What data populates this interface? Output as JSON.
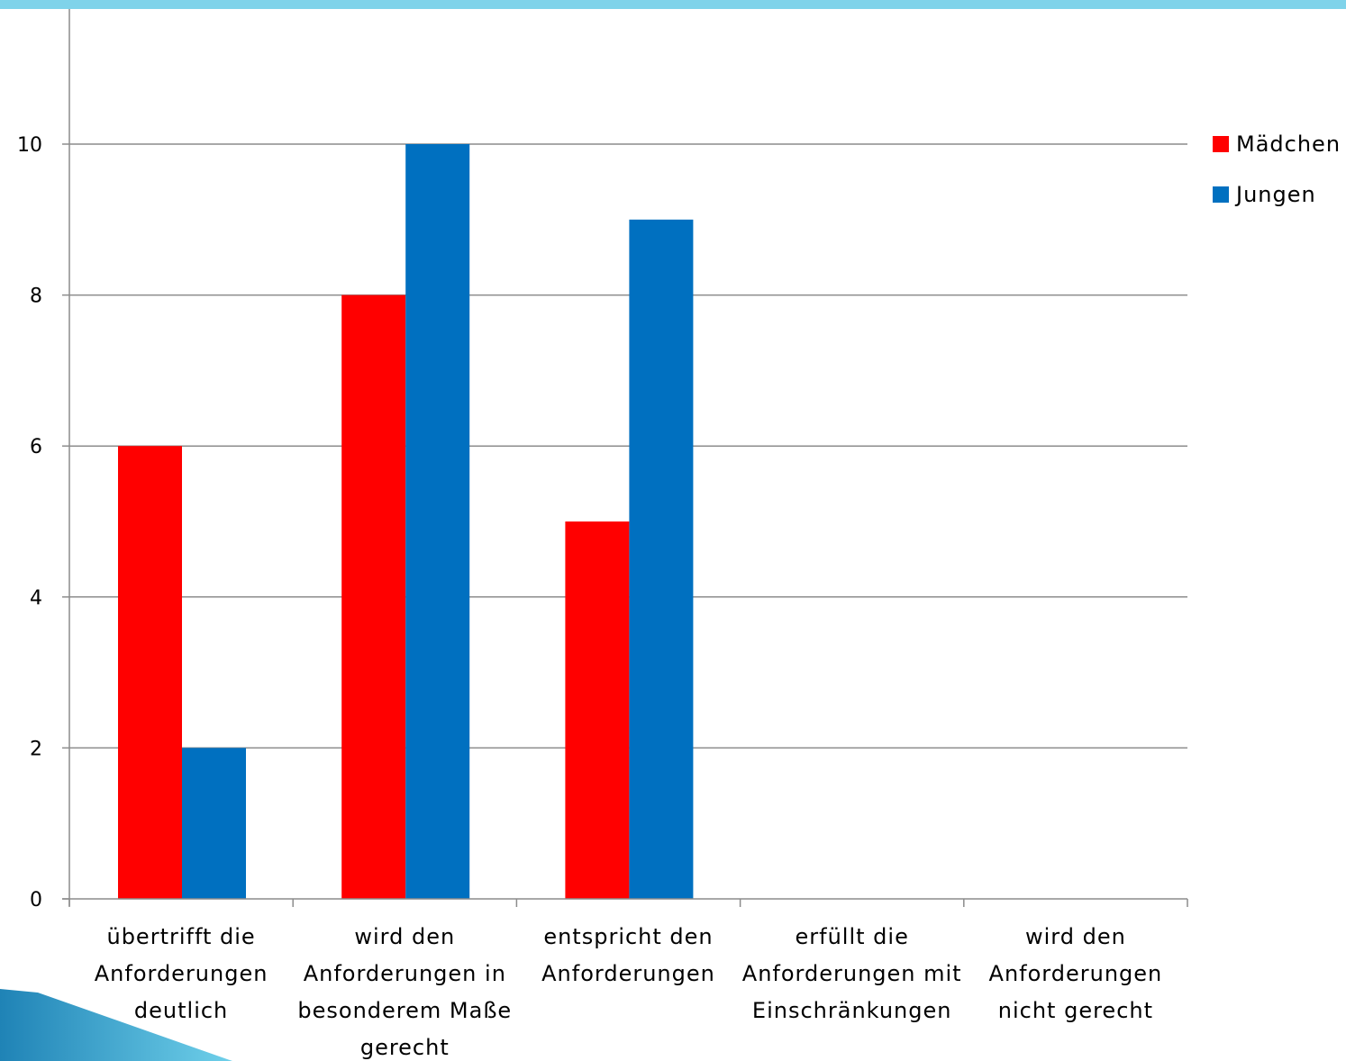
{
  "chart_data": {
    "type": "bar",
    "categories": [
      [
        "übertrifft die",
        "Anforderungen",
        "deutlich"
      ],
      [
        "wird den",
        "Anforderungen in",
        "besonderem Maße",
        "gerecht"
      ],
      [
        "entspricht den",
        "Anforderungen"
      ],
      [
        "erfüllt die",
        "Anforderungen mit",
        "Einschränkungen"
      ],
      [
        "wird den",
        "Anforderungen",
        "nicht gerecht"
      ]
    ],
    "series": [
      {
        "name": "Mädchen",
        "color": "#ff0000",
        "values": [
          6,
          8,
          5,
          0,
          0
        ]
      },
      {
        "name": "Jungen",
        "color": "#0070c0",
        "values": [
          2,
          10,
          9,
          0,
          0
        ]
      }
    ],
    "yticks": [
      0,
      2,
      4,
      6,
      8,
      10
    ],
    "ylim": [
      0,
      12
    ],
    "grid": true,
    "legend_position": "right"
  }
}
